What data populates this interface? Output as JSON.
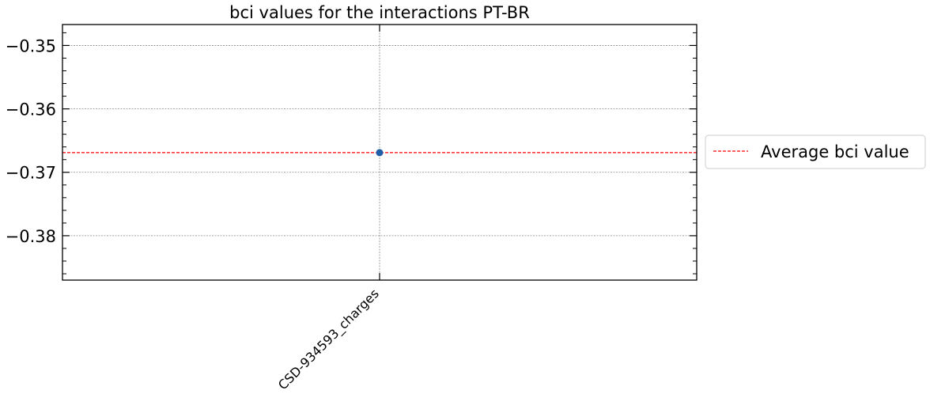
{
  "chart_data": {
    "type": "scatter",
    "title": "bci values for the interactions PT-BR",
    "xlabel": "",
    "ylabel": "",
    "categories": [
      "CSD-934593_charges"
    ],
    "series": [
      {
        "values": [
          -0.3669
        ],
        "color": "#1f5fa8"
      }
    ],
    "average_line": {
      "name": "Average bci value",
      "value": -0.3669,
      "color": "#ff0000",
      "style": "dashed"
    },
    "ylim": [
      -0.387,
      -0.3467
    ],
    "yticks": [
      -0.35,
      -0.36,
      -0.37,
      -0.38
    ],
    "ytick_labels": [
      "−0.35",
      "−0.36",
      "−0.37",
      "−0.38"
    ],
    "grid": true,
    "legend_position": "outside-right"
  }
}
